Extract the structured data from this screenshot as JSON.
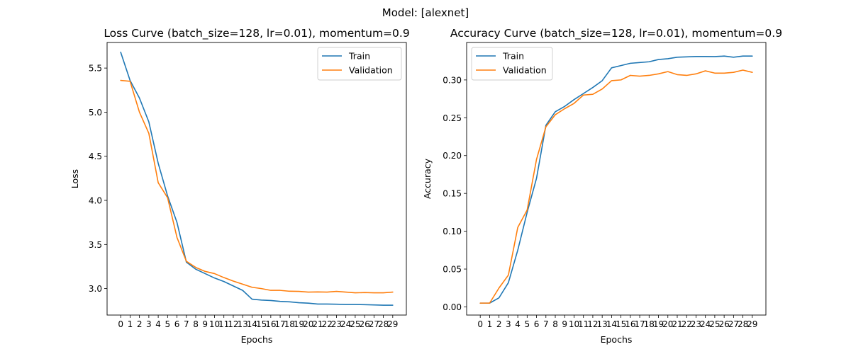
{
  "suptitle": "Model: [alexnet]",
  "colors": {
    "train": "#1f77b4",
    "validation": "#ff7f0e"
  },
  "chart_data": [
    {
      "type": "line",
      "title": "Loss Curve (batch_size=128, lr=0.01), momentum=0.9",
      "xlabel": "Epochs",
      "ylabel": "Loss",
      "x": [
        0,
        1,
        2,
        3,
        4,
        5,
        6,
        7,
        8,
        9,
        10,
        11,
        12,
        13,
        14,
        15,
        16,
        17,
        18,
        19,
        20,
        21,
        22,
        23,
        24,
        25,
        26,
        27,
        28,
        29
      ],
      "xticks": [
        "0",
        "1",
        "2",
        "3",
        "4",
        "5",
        "6",
        "7",
        "8",
        "9",
        "10",
        "11",
        "12",
        "13",
        "14",
        "15",
        "16",
        "17",
        "18",
        "19",
        "20",
        "21",
        "22",
        "23",
        "24",
        "25",
        "26",
        "27",
        "28",
        "29"
      ],
      "xlim": [
        -1.45,
        30.45
      ],
      "ylim": [
        2.7,
        5.79
      ],
      "yticks": [
        "3.0",
        "3.5",
        "4.0",
        "4.5",
        "5.0",
        "5.5"
      ],
      "yticks_values": [
        3.0,
        3.5,
        4.0,
        4.5,
        5.0,
        5.5
      ],
      "grid": false,
      "legend": "upper right",
      "series": [
        {
          "name": "Train",
          "color": "#1f77b4",
          "values": [
            5.68,
            5.36,
            5.16,
            4.89,
            4.42,
            4.05,
            3.75,
            3.3,
            3.22,
            3.17,
            3.12,
            3.08,
            3.03,
            2.98,
            2.88,
            2.87,
            2.865,
            2.855,
            2.85,
            2.84,
            2.835,
            2.825,
            2.825,
            2.823,
            2.82,
            2.82,
            2.818,
            2.815,
            2.812,
            2.812
          ]
        },
        {
          "name": "Validation",
          "color": "#ff7f0e",
          "values": [
            5.36,
            5.35,
            5.0,
            4.76,
            4.2,
            4.03,
            3.58,
            3.31,
            3.24,
            3.195,
            3.17,
            3.125,
            3.085,
            3.05,
            3.015,
            3.0,
            2.98,
            2.98,
            2.97,
            2.968,
            2.96,
            2.962,
            2.96,
            2.968,
            2.96,
            2.952,
            2.955,
            2.952,
            2.952,
            2.96
          ]
        }
      ]
    },
    {
      "type": "line",
      "title": "Accuracy Curve (batch_size=128, lr=0.01), momentum=0.9",
      "xlabel": "Epochs",
      "ylabel": "Accuracy",
      "x": [
        0,
        1,
        2,
        3,
        4,
        5,
        6,
        7,
        8,
        9,
        10,
        11,
        12,
        13,
        14,
        15,
        16,
        17,
        18,
        19,
        20,
        21,
        22,
        23,
        24,
        25,
        26,
        27,
        28,
        29
      ],
      "xticks": [
        "0",
        "1",
        "2",
        "3",
        "4",
        "5",
        "6",
        "7",
        "8",
        "9",
        "10",
        "11",
        "12",
        "13",
        "14",
        "15",
        "16",
        "17",
        "18",
        "19",
        "20",
        "21",
        "22",
        "23",
        "24",
        "25",
        "26",
        "27",
        "28",
        "29"
      ],
      "xlim": [
        -1.45,
        30.45
      ],
      "ylim": [
        -0.0108,
        0.3495
      ],
      "yticks": [
        "0.00",
        "0.05",
        "0.10",
        "0.15",
        "0.20",
        "0.25",
        "0.30"
      ],
      "yticks_values": [
        0.0,
        0.05,
        0.1,
        0.15,
        0.2,
        0.25,
        0.3
      ],
      "grid": false,
      "legend": "upper left",
      "series": [
        {
          "name": "Train",
          "color": "#1f77b4",
          "values": [
            0.005,
            0.005,
            0.012,
            0.032,
            0.075,
            0.125,
            0.17,
            0.24,
            0.258,
            0.265,
            0.274,
            0.282,
            0.29,
            0.299,
            0.316,
            0.319,
            0.322,
            0.323,
            0.324,
            0.327,
            0.328,
            0.33,
            0.3305,
            0.331,
            0.331,
            0.3308,
            0.3315,
            0.33,
            0.3315,
            0.3315
          ]
        },
        {
          "name": "Validation",
          "color": "#ff7f0e",
          "values": [
            0.005,
            0.005,
            0.025,
            0.042,
            0.105,
            0.128,
            0.195,
            0.238,
            0.254,
            0.262,
            0.269,
            0.28,
            0.281,
            0.288,
            0.299,
            0.3,
            0.306,
            0.305,
            0.306,
            0.308,
            0.311,
            0.307,
            0.306,
            0.308,
            0.312,
            0.309,
            0.309,
            0.31,
            0.313,
            0.31
          ]
        }
      ]
    }
  ]
}
